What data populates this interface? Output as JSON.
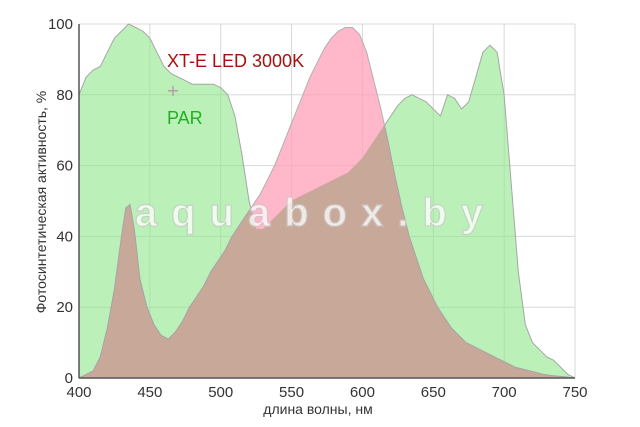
{
  "chart_data": {
    "type": "area",
    "xlabel": "длина волны, нм",
    "ylabel": "Фотосинтетическая активность, %",
    "xlim": [
      400,
      750
    ],
    "ylim": [
      0,
      100
    ],
    "x_ticks": [
      "400",
      "450",
      "500",
      "550",
      "600",
      "650",
      "700",
      "750"
    ],
    "y_ticks": [
      "0",
      "20",
      "40",
      "60",
      "80",
      "100"
    ],
    "grid": true,
    "legend_position": "top-left",
    "series": [
      {
        "name": "PAR",
        "color": "#8ee88a",
        "points": [
          [
            400,
            80
          ],
          [
            405,
            85
          ],
          [
            410,
            87
          ],
          [
            415,
            88
          ],
          [
            420,
            92
          ],
          [
            425,
            96
          ],
          [
            430,
            98
          ],
          [
            435,
            100
          ],
          [
            440,
            99
          ],
          [
            445,
            98
          ],
          [
            450,
            96
          ],
          [
            455,
            92
          ],
          [
            460,
            88
          ],
          [
            465,
            86
          ],
          [
            470,
            85
          ],
          [
            475,
            84
          ],
          [
            480,
            83
          ],
          [
            485,
            83
          ],
          [
            490,
            83
          ],
          [
            495,
            83
          ],
          [
            500,
            82
          ],
          [
            505,
            80
          ],
          [
            510,
            74
          ],
          [
            515,
            63
          ],
          [
            520,
            50
          ],
          [
            525,
            42
          ],
          [
            530,
            42
          ],
          [
            535,
            44
          ],
          [
            540,
            46
          ],
          [
            545,
            48
          ],
          [
            550,
            50
          ],
          [
            555,
            51
          ],
          [
            560,
            52
          ],
          [
            565,
            53
          ],
          [
            570,
            54
          ],
          [
            575,
            55
          ],
          [
            580,
            56
          ],
          [
            585,
            57
          ],
          [
            590,
            58
          ],
          [
            595,
            60
          ],
          [
            600,
            62
          ],
          [
            605,
            65
          ],
          [
            610,
            68
          ],
          [
            615,
            71
          ],
          [
            620,
            74
          ],
          [
            625,
            77
          ],
          [
            630,
            79
          ],
          [
            635,
            80
          ],
          [
            640,
            79
          ],
          [
            645,
            78
          ],
          [
            650,
            76
          ],
          [
            655,
            74
          ],
          [
            660,
            80
          ],
          [
            665,
            79
          ],
          [
            670,
            76
          ],
          [
            675,
            78
          ],
          [
            680,
            85
          ],
          [
            685,
            92
          ],
          [
            690,
            94
          ],
          [
            695,
            92
          ],
          [
            700,
            80
          ],
          [
            705,
            55
          ],
          [
            710,
            30
          ],
          [
            715,
            15
          ],
          [
            720,
            10
          ],
          [
            725,
            8
          ],
          [
            730,
            6
          ],
          [
            735,
            5
          ],
          [
            740,
            3
          ],
          [
            745,
            1
          ],
          [
            750,
            0
          ]
        ]
      },
      {
        "name": "XT-E LED 3000K",
        "color": "#ff9fb8",
        "points": [
          [
            400,
            0
          ],
          [
            410,
            2
          ],
          [
            415,
            6
          ],
          [
            420,
            14
          ],
          [
            425,
            25
          ],
          [
            430,
            40
          ],
          [
            433,
            48
          ],
          [
            436,
            49
          ],
          [
            439,
            42
          ],
          [
            443,
            28
          ],
          [
            448,
            20
          ],
          [
            453,
            15
          ],
          [
            458,
            12
          ],
          [
            463,
            11
          ],
          [
            468,
            13
          ],
          [
            473,
            16
          ],
          [
            478,
            20
          ],
          [
            483,
            23
          ],
          [
            488,
            26
          ],
          [
            493,
            30
          ],
          [
            498,
            33
          ],
          [
            503,
            36
          ],
          [
            508,
            40
          ],
          [
            513,
            43
          ],
          [
            518,
            46
          ],
          [
            523,
            49
          ],
          [
            528,
            52
          ],
          [
            533,
            56
          ],
          [
            538,
            60
          ],
          [
            543,
            65
          ],
          [
            548,
            70
          ],
          [
            553,
            75
          ],
          [
            558,
            80
          ],
          [
            563,
            85
          ],
          [
            568,
            89
          ],
          [
            573,
            93
          ],
          [
            578,
            96
          ],
          [
            583,
            98
          ],
          [
            588,
            99
          ],
          [
            593,
            99
          ],
          [
            598,
            97
          ],
          [
            603,
            92
          ],
          [
            608,
            84
          ],
          [
            613,
            76
          ],
          [
            618,
            67
          ],
          [
            623,
            57
          ],
          [
            628,
            48
          ],
          [
            633,
            40
          ],
          [
            638,
            34
          ],
          [
            643,
            28
          ],
          [
            648,
            24
          ],
          [
            653,
            20
          ],
          [
            658,
            17
          ],
          [
            663,
            14
          ],
          [
            668,
            12
          ],
          [
            673,
            10
          ],
          [
            678,
            9
          ],
          [
            683,
            8
          ],
          [
            688,
            7
          ],
          [
            693,
            6
          ],
          [
            698,
            5
          ],
          [
            703,
            4
          ],
          [
            708,
            3
          ],
          [
            713,
            2.5
          ],
          [
            718,
            2
          ],
          [
            723,
            1.5
          ],
          [
            728,
            1
          ],
          [
            733,
            0.7
          ],
          [
            738,
            0.5
          ],
          [
            743,
            0.3
          ],
          [
            750,
            0
          ]
        ]
      }
    ],
    "legend": [
      {
        "label": "XT-E LED 3000K",
        "color": "#a81010"
      },
      {
        "label": "PAR",
        "color": "#22b022"
      }
    ],
    "overlap_color": "#c8a898",
    "watermark": "aquabox.by"
  }
}
